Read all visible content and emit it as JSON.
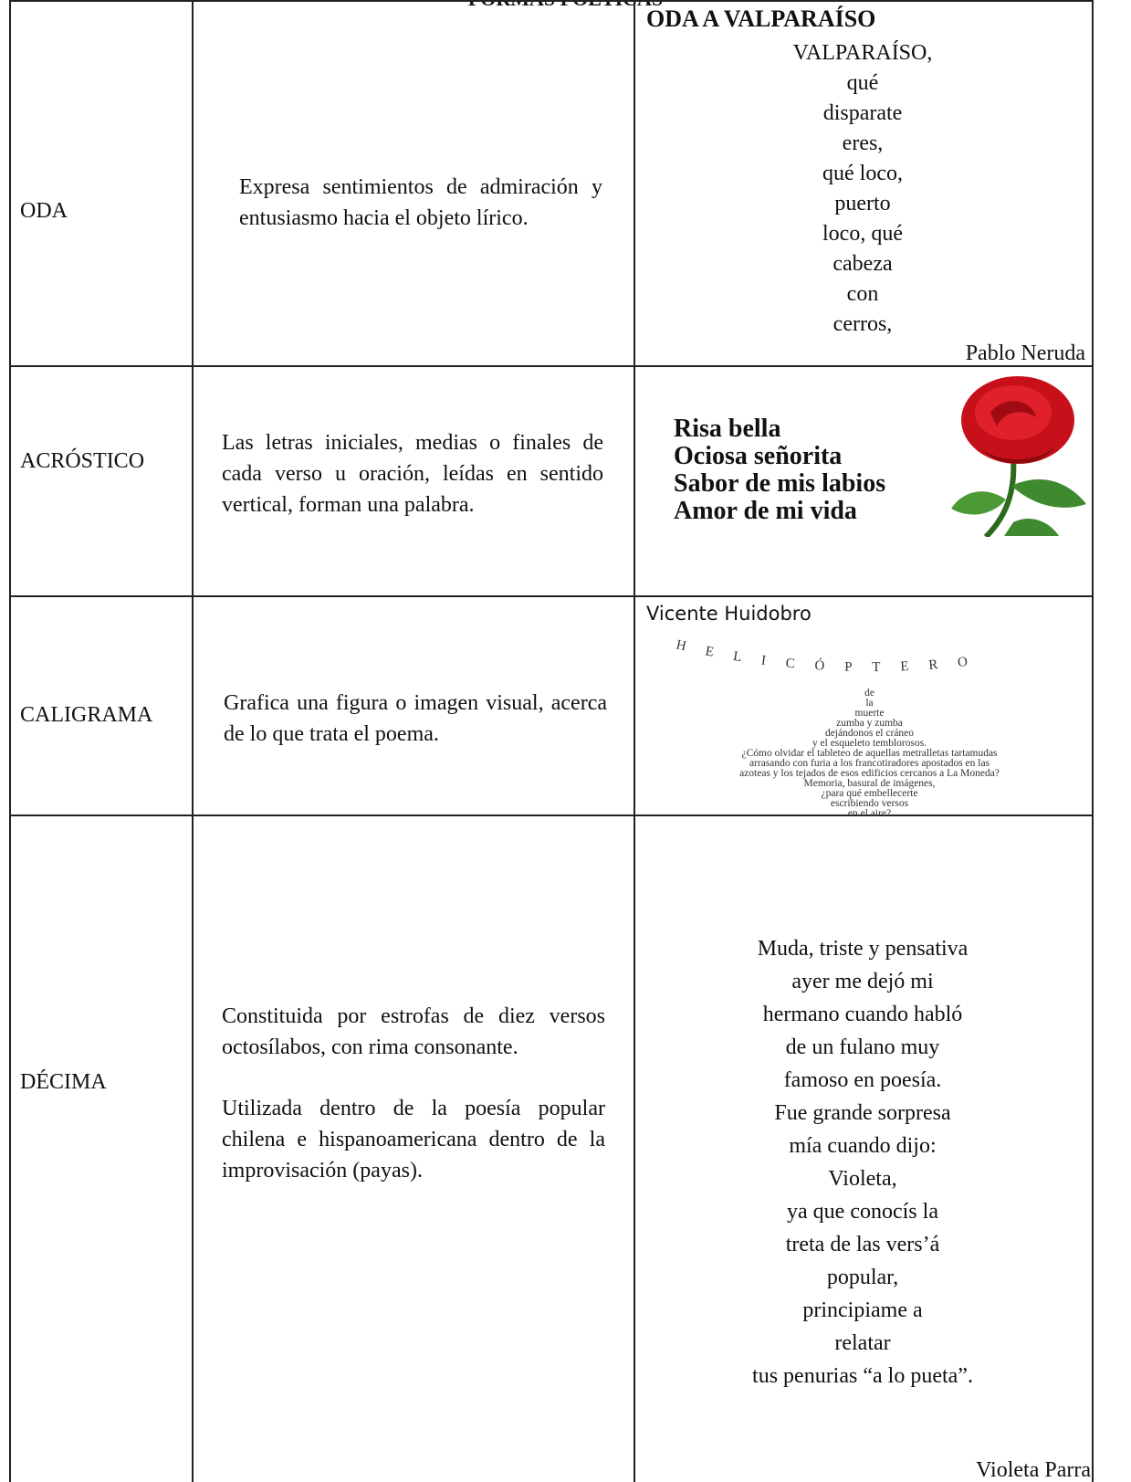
{
  "header": {
    "title": "FORMAS POÉTICAS"
  },
  "table": {
    "rows": [
      {
        "form": "ODA",
        "description": [
          "Expresa sentimientos de admiración y entusiasmo hacia el objeto lírico."
        ],
        "example": {
          "title": "ODA A VALPARAÍSO",
          "lines": [
            "VALPARAÍSO,",
            "qué",
            "disparate",
            "eres,",
            "qué loco,",
            "puerto",
            "loco, qué",
            "cabeza",
            "con",
            "cerros,"
          ],
          "author": "Pablo Neruda"
        }
      },
      {
        "form": "ACRÓSTICO",
        "description": [
          "Las letras iniciales, medias o finales de cada verso u oración, leídas en sentido vertical, forman una palabra."
        ],
        "example": {
          "lines": [
            "Risa bella",
            "Ociosa señorita",
            "Sabor de mis labios",
            "Amor de mi vida"
          ]
        }
      },
      {
        "form": "CALIGRAMA",
        "description": [
          "Grafica una figura o imagen visual, acerca de lo que trata el poema."
        ],
        "example": {
          "author": "Vicente Huidobro",
          "shape_word": "HELICÓPTERO",
          "lines": [
            "de",
            "la",
            "muerte",
            "zumba y zumba",
            "dejándonos el cráneo",
            "y el esqueleto temblorosos.",
            "¿Cómo olvidar el tableteo de aquellas metralletas tartamudas",
            "arrasando con furia a los francotiradores apostados en las",
            "azoteas y los tejados de esos edificios cercanos a La Moneda?",
            "Memoria, basural de imágenes,",
            "¿para qué embellecerte",
            "escribiendo versos",
            "en el aire?"
          ]
        }
      },
      {
        "form": "DÉCIMA",
        "description": [
          "Constituida por estrofas de diez versos octosílabos, con rima consonante.",
          "Utilizada dentro de la poesía popular chilena e hispanoamericana dentro de la improvisación (payas)."
        ],
        "example": {
          "lines": [
            "Muda, triste y pensativa",
            "ayer me dejó mi",
            "hermano cuando habló",
            "de un fulano muy",
            "famoso en poesía.",
            "Fue grande sorpresa",
            "mía cuando dijo:",
            "Violeta,",
            "ya que conocís la",
            "treta de las vers’á",
            "popular,",
            "principiame a",
            "relatar",
            "tus penurias “a lo pueta”."
          ],
          "author": "Violeta Parra"
        }
      }
    ]
  }
}
